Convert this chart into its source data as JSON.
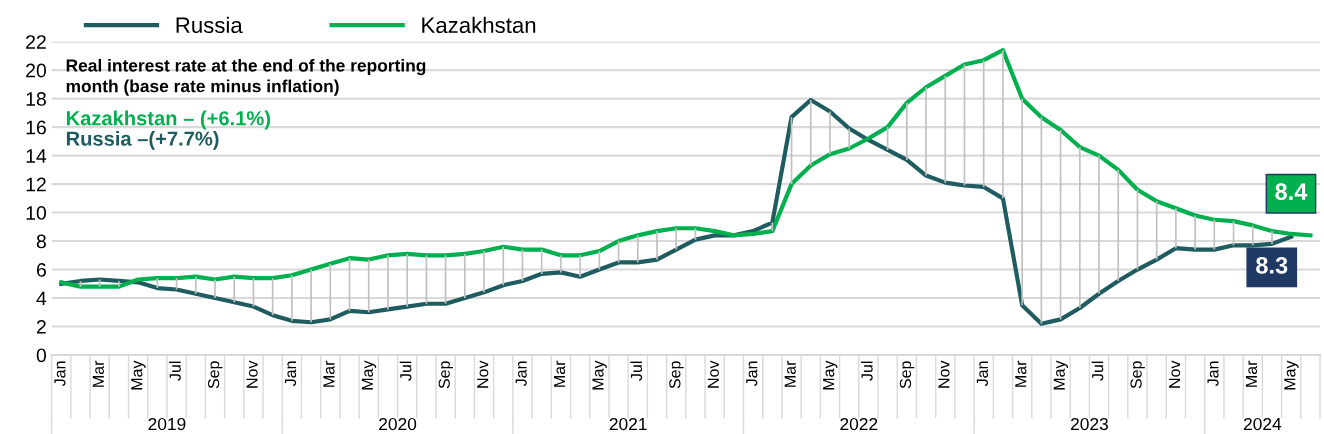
{
  "chart_data": {
    "type": "line",
    "title": "Real interest rate at the end of the reporting\nmonth (base rate minus inflation)",
    "categories": [
      "Jan",
      null,
      "Mar",
      null,
      "May",
      null,
      "Jul",
      null,
      "Sep",
      null,
      "Nov",
      null,
      "Jan",
      null,
      "Mar",
      null,
      "May",
      null,
      "Jul",
      null,
      "Sep",
      null,
      "Nov",
      null,
      "Jan",
      null,
      "Mar",
      null,
      "May",
      null,
      "Jul",
      null,
      "Sep",
      null,
      "Nov",
      null,
      "Jan",
      null,
      "Mar",
      null,
      "May",
      null,
      "Jul",
      null,
      "Sep",
      null,
      "Nov",
      null,
      "Jan",
      null,
      "Mar",
      null,
      "May",
      null,
      "Jul",
      null,
      "Sep",
      null,
      "Nov",
      null,
      "Jan",
      null,
      "Mar",
      null,
      "May",
      null
    ],
    "series": [
      {
        "name": "Russia",
        "color": "#1f5c5f",
        "values": [
          5.0,
          5.2,
          5.3,
          5.2,
          5.1,
          4.7,
          4.6,
          4.3,
          4.0,
          3.7,
          3.4,
          2.8,
          2.4,
          2.3,
          2.5,
          3.1,
          3.0,
          3.2,
          3.4,
          3.6,
          3.6,
          4.0,
          4.4,
          4.9,
          5.2,
          5.7,
          5.8,
          5.5,
          6.0,
          6.5,
          6.5,
          6.7,
          7.4,
          8.1,
          8.4,
          8.4,
          8.7,
          9.3,
          16.7,
          17.9,
          17.1,
          15.9,
          15.1,
          14.4,
          13.7,
          12.6,
          12.1,
          11.9,
          11.8,
          11.0,
          3.5,
          2.2,
          2.5,
          3.3,
          4.3,
          5.2,
          6.0,
          6.7,
          7.5,
          7.4,
          7.4,
          7.7,
          7.7,
          7.8,
          8.3,
          null
        ],
        "value_labels": [
          null,
          null,
          null,
          null,
          null,
          null,
          null,
          null,
          null,
          null,
          null,
          null,
          null,
          null,
          null,
          null,
          null,
          null,
          null,
          null,
          null,
          null,
          null,
          null,
          null,
          null,
          null,
          null,
          null,
          null,
          null,
          null,
          null,
          null,
          null,
          null,
          null,
          null,
          null,
          null,
          null,
          null,
          null,
          null,
          null,
          null,
          null,
          null,
          null,
          null,
          null,
          null,
          null,
          null,
          null,
          null,
          null,
          null,
          null,
          null,
          null,
          null,
          null,
          null,
          "8.3",
          null
        ]
      },
      {
        "name": "Kazakhstan",
        "color": "#00b04f",
        "values": [
          5.1,
          4.8,
          4.8,
          4.8,
          5.3,
          5.4,
          5.4,
          5.5,
          5.3,
          5.5,
          5.4,
          5.4,
          5.6,
          6.0,
          6.4,
          6.8,
          6.7,
          7.0,
          7.1,
          7.0,
          7.0,
          7.1,
          7.3,
          7.6,
          7.4,
          7.4,
          7.0,
          7.0,
          7.3,
          8.0,
          8.4,
          8.7,
          8.9,
          8.9,
          8.7,
          8.4,
          8.5,
          8.7,
          12.0,
          13.3,
          14.1,
          14.5,
          15.2,
          16.0,
          17.7,
          18.8,
          19.6,
          20.4,
          20.7,
          21.4,
          18.0,
          16.7,
          15.8,
          14.6,
          14.0,
          13.0,
          11.6,
          10.8,
          10.3,
          9.8,
          9.5,
          9.4,
          9.1,
          8.7,
          8.5,
          8.4
        ],
        "errors": [
          null,
          [
            4.8,
            5.2
          ],
          [
            4.8,
            5.3
          ],
          [
            4.8,
            5.2
          ],
          null,
          [
            4.7,
            5.4
          ],
          [
            4.6,
            5.4
          ],
          [
            4.3,
            5.5
          ],
          [
            4.0,
            5.3
          ],
          [
            3.7,
            5.5
          ],
          [
            3.4,
            5.4
          ],
          [
            2.8,
            5.4
          ],
          [
            2.4,
            5.6
          ],
          [
            2.3,
            6.0
          ],
          [
            2.5,
            6.4
          ],
          [
            3.1,
            6.8
          ],
          [
            3.0,
            6.7
          ],
          [
            3.2,
            7.0
          ],
          [
            3.4,
            7.1
          ],
          [
            3.6,
            7.0
          ],
          [
            3.6,
            7.0
          ],
          [
            4.0,
            7.1
          ],
          [
            4.4,
            7.3
          ],
          [
            4.9,
            7.6
          ],
          [
            5.2,
            7.4
          ],
          [
            5.7,
            7.4
          ],
          [
            5.8,
            7.0
          ],
          [
            5.5,
            7.0
          ],
          [
            6.0,
            7.3
          ],
          [
            6.5,
            8.0
          ],
          [
            6.5,
            8.4
          ],
          [
            6.7,
            8.7
          ],
          [
            7.4,
            8.9
          ],
          [
            8.1,
            8.9
          ],
          null,
          null,
          null,
          [
            8.7,
            9.3
          ],
          [
            12.0,
            16.7
          ],
          [
            13.3,
            17.9
          ],
          [
            14.1,
            17.1
          ],
          [
            14.5,
            15.9
          ],
          null,
          [
            14.4,
            16.0
          ],
          [
            13.7,
            17.7
          ],
          [
            12.6,
            18.8
          ],
          [
            12.1,
            19.6
          ],
          [
            11.9,
            20.4
          ],
          [
            11.8,
            20.7
          ],
          [
            11.0,
            21.4
          ],
          [
            3.5,
            18.0
          ],
          [
            2.2,
            16.7
          ],
          [
            2.5,
            15.8
          ],
          [
            3.3,
            14.6
          ],
          [
            4.3,
            14.0
          ],
          [
            5.2,
            13.0
          ],
          [
            6.0,
            11.6
          ],
          [
            6.7,
            10.8
          ],
          [
            7.5,
            10.3
          ],
          [
            7.4,
            9.8
          ],
          [
            7.4,
            9.5
          ],
          [
            7.7,
            9.4
          ],
          [
            7.7,
            9.1
          ],
          [
            7.8,
            8.7
          ],
          null,
          null
        ],
        "value_labels": [
          null,
          null,
          null,
          null,
          null,
          null,
          null,
          null,
          null,
          null,
          null,
          null,
          null,
          null,
          null,
          null,
          null,
          null,
          null,
          null,
          null,
          null,
          null,
          null,
          null,
          null,
          null,
          null,
          null,
          null,
          null,
          null,
          null,
          null,
          null,
          null,
          null,
          null,
          null,
          null,
          null,
          null,
          null,
          null,
          null,
          null,
          null,
          null,
          null,
          null,
          null,
          null,
          null,
          null,
          null,
          null,
          null,
          null,
          null,
          null,
          null,
          null,
          null,
          null,
          null,
          "8.4"
        ]
      }
    ],
    "annotations": [
      "Kazakhstan – (+6.1%)",
      "Russia –(+7.7%)",
      "2019",
      "2020",
      "2021",
      "2022",
      "2023",
      "2024"
    ],
    "ylim": [
      0,
      22
    ],
    "yticks": [
      0,
      2,
      4,
      6,
      8,
      10,
      12,
      14,
      16,
      18,
      20,
      22
    ],
    "grid": "y",
    "legend": "top",
    "marker": "none",
    "line_style": "solid"
  }
}
